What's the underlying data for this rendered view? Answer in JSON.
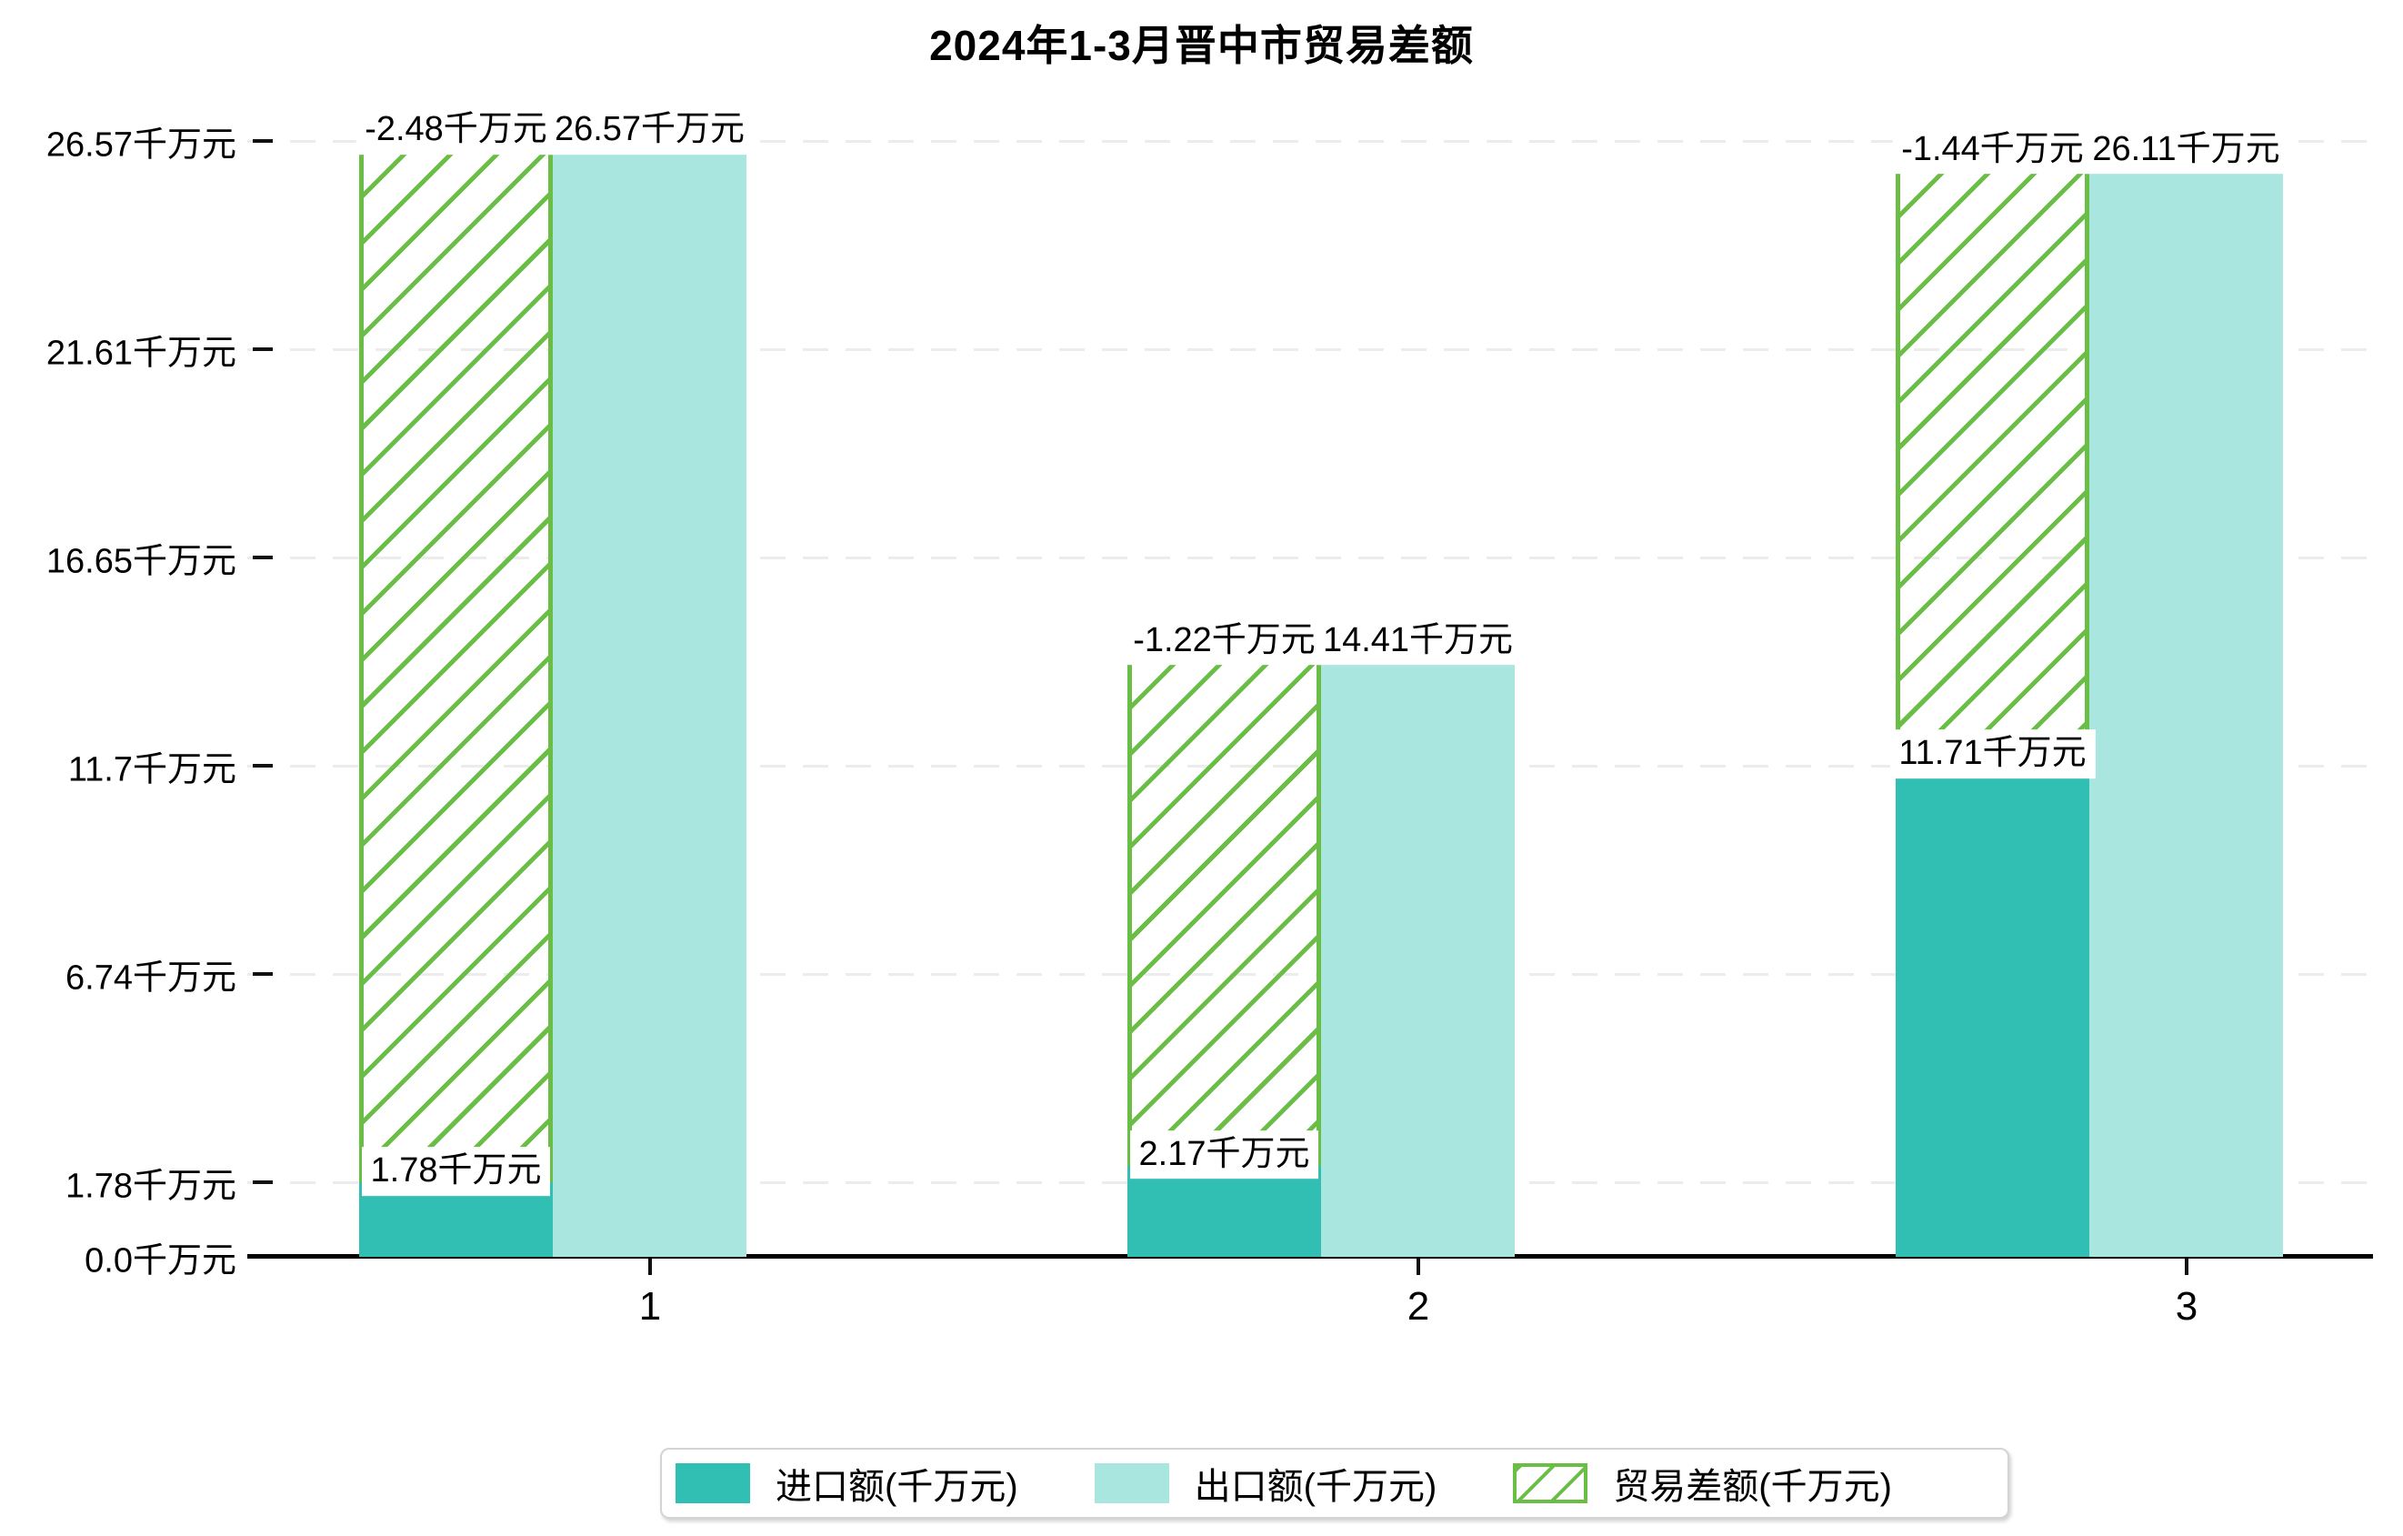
{
  "title": "2024年1-3月晋中市贸易差额",
  "unit": "千万元",
  "chart_data": {
    "type": "bar",
    "categories": [
      "1",
      "2",
      "3"
    ],
    "series": [
      {
        "name": "进口额(千万元)",
        "role": "import",
        "values": [
          1.78,
          2.17,
          11.71
        ],
        "labels": [
          "1.78千万元",
          "2.17千万元",
          "11.71千万元"
        ],
        "color": "#31bfb3",
        "style": "solid"
      },
      {
        "name": "出口额(千万元)",
        "role": "export",
        "values": [
          26.57,
          14.41,
          26.11
        ],
        "labels": [
          "26.57千万元",
          "14.41千万元",
          "26.11千万元"
        ],
        "color": "#a9e6df",
        "style": "solid"
      },
      {
        "name": "贸易差额(千万元)",
        "role": "balance",
        "values": [
          -2.48,
          -1.22,
          -1.44
        ],
        "labels": [
          "-2.48千万元",
          "-1.22千万元",
          "-1.44千万元"
        ],
        "color": "#6abd45",
        "style": "hatched",
        "drawn_as": "hatched column spanning from import value up to export value, sharing the import column x-position"
      }
    ],
    "y_axis": {
      "tick_values": [
        0.0,
        1.78,
        6.74,
        11.7,
        16.65,
        21.61,
        26.57
      ],
      "tick_labels": [
        "0.0千万元",
        "1.78千万元",
        "6.74千万元",
        "11.7千万元",
        "16.65千万元",
        "21.61千万元",
        "26.57千万元"
      ],
      "ylim": [
        0,
        28.5
      ],
      "grid": "dashed horizontal gridlines at each tick"
    },
    "x_axis": {
      "tick_labels": [
        "1",
        "2",
        "3"
      ]
    },
    "legend_position": "bottom center"
  },
  "legend": {
    "items": [
      {
        "label": "进口额(千万元)",
        "color": "#31bfb3",
        "style": "solid"
      },
      {
        "label": "出口额(千万元)",
        "color": "#a9e6df",
        "style": "solid"
      },
      {
        "label": "贸易差额(千万元)",
        "color": "#6abd45",
        "style": "hatched"
      }
    ]
  },
  "colors": {
    "import": "#31bfb3",
    "export": "#a9e6df",
    "balance_hatch": "#6abd45",
    "gridline": "#ececec",
    "axis": "#000000"
  }
}
